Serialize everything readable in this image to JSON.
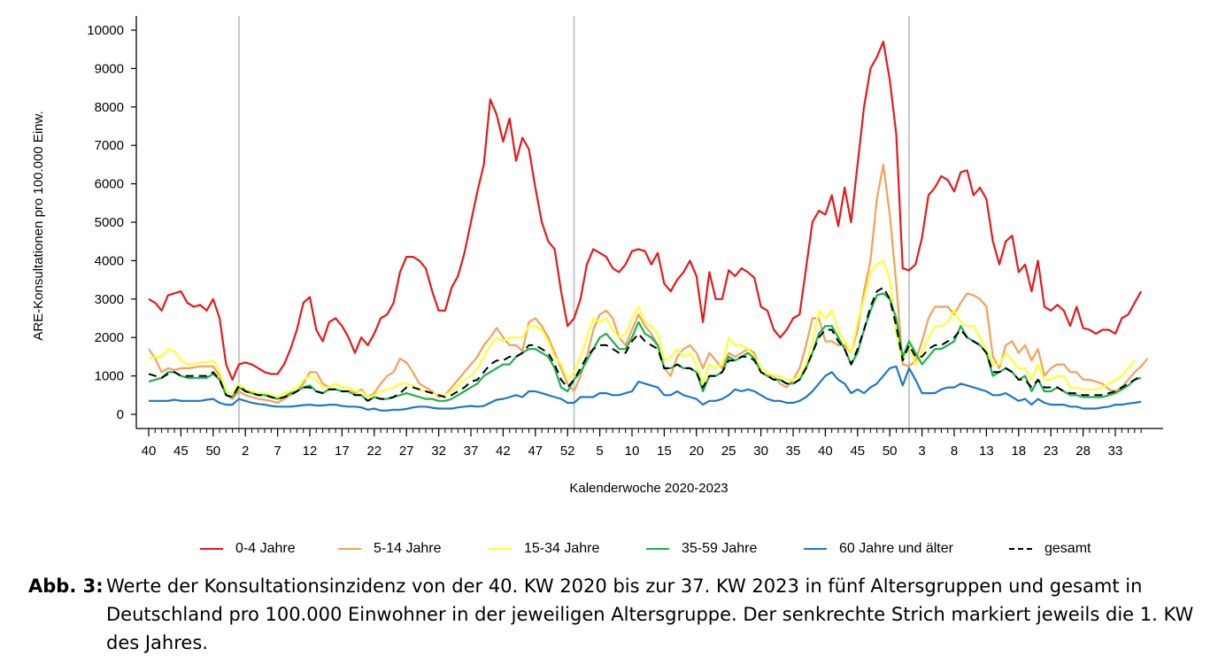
{
  "chart_data": {
    "type": "line",
    "xlabel": "Kalenderwoche 2020-2023",
    "ylabel": "ARE-Konsultationen pro 100.000 Einw.",
    "ylim": [
      0,
      10000
    ],
    "yticks": [
      0,
      1000,
      2000,
      3000,
      4000,
      5000,
      6000,
      7000,
      8000,
      9000,
      10000
    ],
    "x_tick_labels": [
      "40",
      "45",
      "50",
      "2",
      "7",
      "12",
      "17",
      "22",
      "27",
      "32",
      "37",
      "42",
      "47",
      "52",
      "5",
      "10",
      "15",
      "20",
      "25",
      "30",
      "35",
      "40",
      "45",
      "50",
      "3",
      "8",
      "13",
      "18",
      "23",
      "28",
      "33"
    ],
    "x_tick_positions": [
      0,
      5,
      10,
      15,
      20,
      25,
      30,
      35,
      40,
      45,
      50,
      55,
      60,
      65,
      70,
      75,
      80,
      85,
      90,
      95,
      100,
      105,
      110,
      115,
      120,
      125,
      130,
      135,
      140,
      145,
      150
    ],
    "year_start_markers": [
      14,
      66,
      118
    ],
    "legend_position": "bottom",
    "series": [
      {
        "name": "0-4 Jahre",
        "color": "#e41a1c",
        "values": [
          3000,
          2900,
          2700,
          3100,
          3150,
          3200,
          2900,
          2800,
          2850,
          2700,
          3000,
          2500,
          1300,
          900,
          1300,
          1350,
          1300,
          1200,
          1100,
          1050,
          1050,
          1300,
          1700,
          2200,
          2900,
          3050,
          2200,
          1900,
          2400,
          2500,
          2300,
          2000,
          1600,
          2000,
          1800,
          2100,
          2500,
          2600,
          2900,
          3700,
          4100,
          4100,
          4000,
          3800,
          3200,
          2700,
          2700,
          3300,
          3600,
          4200,
          5000,
          5800,
          6500,
          8200,
          7800,
          7100,
          7700,
          6600,
          7200,
          6900,
          5900,
          5000,
          4500,
          4300,
          3200,
          2300,
          2500,
          3000,
          3900,
          4300,
          4200,
          4100,
          3800,
          3700,
          3900,
          4250,
          4300,
          4250,
          3900,
          4200,
          3400,
          3200,
          3500,
          3700,
          4000,
          3600,
          2400,
          3700,
          3000,
          3000,
          3750,
          3600,
          3800,
          3700,
          3550,
          2800,
          2700,
          2200,
          2000,
          2200,
          2500,
          2600,
          3800,
          5000,
          5300,
          5200,
          5700,
          4900,
          5900,
          5000,
          6500,
          8000,
          9000,
          9300,
          9700,
          8700,
          7300,
          3800,
          3750,
          3900,
          4600,
          5700,
          5900,
          6200,
          6100,
          5800,
          6300,
          6350,
          5700,
          5900,
          5600,
          4500,
          3900,
          4500,
          4650,
          3700,
          3900,
          3200,
          4000,
          2800,
          2700,
          2850,
          2700,
          2300,
          2800,
          2250,
          2200,
          2100,
          2200,
          2200,
          2100,
          2500,
          2600,
          2900,
          3200
        ]
      },
      {
        "name": "5-14 Jahre",
        "color": "#f5a05a",
        "values": [
          1700,
          1450,
          1100,
          1200,
          1150,
          1200,
          1200,
          1220,
          1250,
          1250,
          1250,
          1000,
          500,
          400,
          600,
          500,
          450,
          400,
          380,
          350,
          300,
          400,
          500,
          600,
          800,
          1100,
          1100,
          800,
          700,
          800,
          700,
          700,
          550,
          650,
          450,
          550,
          800,
          1000,
          1100,
          1450,
          1350,
          1100,
          800,
          700,
          600,
          450,
          500,
          700,
          900,
          1100,
          1300,
          1500,
          1800,
          2000,
          2250,
          2000,
          1800,
          1800,
          1650,
          2400,
          2500,
          2300,
          2000,
          1600,
          1200,
          800,
          600,
          1000,
          1500,
          2200,
          2600,
          2700,
          2500,
          2000,
          1800,
          2200,
          2600,
          2300,
          2100,
          1800,
          1200,
          1000,
          1500,
          1700,
          1800,
          1600,
          1200,
          1600,
          1400,
          1200,
          1600,
          1500,
          1600,
          1700,
          1600,
          1100,
          1000,
          1000,
          800,
          700,
          900,
          1200,
          1800,
          2500,
          2500,
          1900,
          1900,
          1800,
          1800,
          1600,
          2200,
          3200,
          4000,
          5600,
          6500,
          5200,
          3400,
          1300,
          1250,
          1400,
          1900,
          2500,
          2800,
          2800,
          2800,
          2600,
          2900,
          3150,
          3100,
          3000,
          2800,
          1500,
          1200,
          1800,
          1900,
          1600,
          1800,
          1400,
          1700,
          1000,
          1200,
          1300,
          1300,
          1100,
          1100,
          900,
          900,
          850,
          800,
          650,
          600,
          700,
          900,
          1100,
          1250,
          1450
        ]
      },
      {
        "name": "15-34 Jahre",
        "color": "#ffff33",
        "values": [
          1450,
          1500,
          1500,
          1700,
          1650,
          1400,
          1300,
          1300,
          1350,
          1350,
          1400,
          1100,
          600,
          550,
          800,
          650,
          600,
          550,
          550,
          500,
          450,
          550,
          600,
          700,
          900,
          1000,
          900,
          700,
          700,
          800,
          700,
          700,
          600,
          600,
          450,
          500,
          600,
          650,
          700,
          800,
          800,
          750,
          650,
          600,
          550,
          500,
          500,
          600,
          750,
          900,
          1000,
          1200,
          1500,
          1800,
          2000,
          1900,
          2000,
          2000,
          2000,
          2300,
          2300,
          2200,
          1900,
          1500,
          1300,
          900,
          1100,
          1500,
          2000,
          2500,
          2400,
          2500,
          2200,
          2000,
          2100,
          2500,
          2800,
          2400,
          2300,
          2100,
          1400,
          1500,
          1700,
          1500,
          1600,
          1300,
          800,
          1300,
          1200,
          1300,
          2000,
          1800,
          1800,
          1700,
          1500,
          1200,
          1100,
          1000,
          1000,
          900,
          900,
          1000,
          1300,
          1900,
          2700,
          2500,
          2700,
          2200,
          1900,
          1600,
          2400,
          3000,
          3700,
          3900,
          4000,
          3500,
          2100,
          1400,
          1800,
          1300,
          1600,
          2000,
          2300,
          2300,
          2400,
          2700,
          2400,
          2300,
          2300,
          2000,
          1700,
          1300,
          1300,
          1600,
          1400,
          1200,
          1200,
          900,
          1300,
          900,
          900,
          1000,
          1000,
          700,
          700,
          650,
          650,
          650,
          700,
          800,
          900,
          1000,
          1200,
          1400
        ]
      },
      {
        "name": "35-59 Jahre",
        "color": "#1ab34a",
        "values": [
          850,
          900,
          950,
          1100,
          1100,
          1000,
          950,
          950,
          950,
          950,
          1050,
          900,
          500,
          450,
          700,
          600,
          550,
          500,
          500,
          450,
          400,
          450,
          550,
          600,
          700,
          750,
          600,
          550,
          650,
          650,
          600,
          600,
          500,
          500,
          350,
          450,
          400,
          400,
          450,
          500,
          550,
          500,
          450,
          400,
          400,
          350,
          350,
          400,
          500,
          600,
          700,
          800,
          1000,
          1100,
          1200,
          1300,
          1300,
          1500,
          1600,
          1700,
          1700,
          1600,
          1500,
          1200,
          700,
          600,
          900,
          1100,
          1400,
          1700,
          2000,
          2100,
          1900,
          1700,
          1700,
          2000,
          2400,
          2100,
          2000,
          1800,
          1200,
          1200,
          1300,
          1200,
          1200,
          1100,
          600,
          1000,
          1000,
          1100,
          1500,
          1400,
          1500,
          1600,
          1450,
          1100,
          1000,
          900,
          900,
          800,
          800,
          900,
          1200,
          1600,
          2100,
          2300,
          2300,
          2000,
          1700,
          1300,
          1600,
          2200,
          2700,
          3100,
          3150,
          3000,
          2500,
          1500,
          1900,
          1600,
          1300,
          1500,
          1700,
          1700,
          1800,
          1900,
          2300,
          2000,
          1900,
          1800,
          1600,
          1000,
          1100,
          1200,
          1100,
          900,
          1000,
          600,
          900,
          600,
          600,
          700,
          600,
          500,
          500,
          450,
          450,
          450,
          450,
          500,
          550,
          650,
          750,
          900,
          950
        ]
      },
      {
        "name": "60 Jahre und älter",
        "color": "#1f78c8",
        "values": [
          350,
          350,
          350,
          350,
          380,
          350,
          350,
          350,
          350,
          380,
          400,
          300,
          250,
          250,
          400,
          350,
          300,
          270,
          250,
          220,
          200,
          200,
          200,
          220,
          240,
          250,
          230,
          230,
          250,
          250,
          220,
          200,
          200,
          180,
          120,
          150,
          100,
          100,
          120,
          120,
          140,
          180,
          200,
          200,
          170,
          150,
          150,
          150,
          180,
          200,
          220,
          200,
          220,
          300,
          380,
          400,
          450,
          500,
          450,
          600,
          600,
          550,
          500,
          450,
          400,
          300,
          300,
          450,
          450,
          450,
          550,
          550,
          500,
          500,
          550,
          600,
          850,
          800,
          750,
          700,
          500,
          500,
          600,
          500,
          450,
          400,
          250,
          350,
          350,
          400,
          500,
          650,
          600,
          650,
          600,
          500,
          400,
          350,
          350,
          300,
          300,
          350,
          450,
          600,
          800,
          1000,
          1100,
          900,
          800,
          550,
          650,
          550,
          700,
          800,
          1000,
          1200,
          1250,
          750,
          1200,
          900,
          550,
          550,
          550,
          650,
          700,
          700,
          800,
          750,
          700,
          650,
          600,
          500,
          500,
          550,
          450,
          350,
          400,
          250,
          400,
          300,
          250,
          250,
          250,
          200,
          200,
          150,
          150,
          150,
          180,
          200,
          250,
          250,
          280,
          300,
          330
        ]
      },
      {
        "name": "gesamt",
        "color": "#000000",
        "dashed": true,
        "values": [
          1050,
          1000,
          950,
          1050,
          1100,
          1000,
          1000,
          1000,
          1000,
          1000,
          1100,
          900,
          500,
          450,
          750,
          600,
          550,
          500,
          500,
          450,
          400,
          450,
          500,
          600,
          700,
          700,
          600,
          550,
          650,
          650,
          600,
          600,
          500,
          500,
          350,
          450,
          400,
          400,
          450,
          550,
          700,
          700,
          650,
          600,
          550,
          500,
          450,
          500,
          600,
          700,
          850,
          900,
          1100,
          1300,
          1400,
          1400,
          1500,
          1500,
          1600,
          1800,
          1800,
          1700,
          1600,
          1300,
          900,
          700,
          900,
          1200,
          1500,
          1700,
          1800,
          1800,
          1700,
          1600,
          1600,
          1900,
          2100,
          1900,
          1800,
          1700,
          1200,
          1200,
          1300,
          1200,
          1200,
          1100,
          700,
          1000,
          1000,
          1100,
          1400,
          1400,
          1500,
          1500,
          1400,
          1100,
          1000,
          900,
          900,
          800,
          800,
          900,
          1200,
          1600,
          2000,
          2200,
          2200,
          1900,
          1700,
          1300,
          1700,
          2200,
          2800,
          3200,
          3300,
          3000,
          2300,
          1400,
          1800,
          1500,
          1500,
          1700,
          1800,
          1800,
          1900,
          2000,
          2200,
          2000,
          1900,
          1800,
          1600,
          1100,
          1100,
          1200,
          1100,
          900,
          900,
          700,
          900,
          700,
          700,
          700,
          600,
          550,
          550,
          500,
          500,
          500,
          500,
          550,
          600,
          700,
          800,
          900,
          1000
        ]
      }
    ]
  },
  "caption": {
    "label": "Abb. 3:",
    "text": "Werte der Konsultationsinzidenz von der 40. KW 2020 bis zur 37. KW 2023 in fünf Altersgruppen und gesamt in Deutschland pro 100.000 Einwohner in der jeweiligen Altersgruppe. Der senkrechte Strich markiert jeweils die 1. KW des Jahres."
  }
}
